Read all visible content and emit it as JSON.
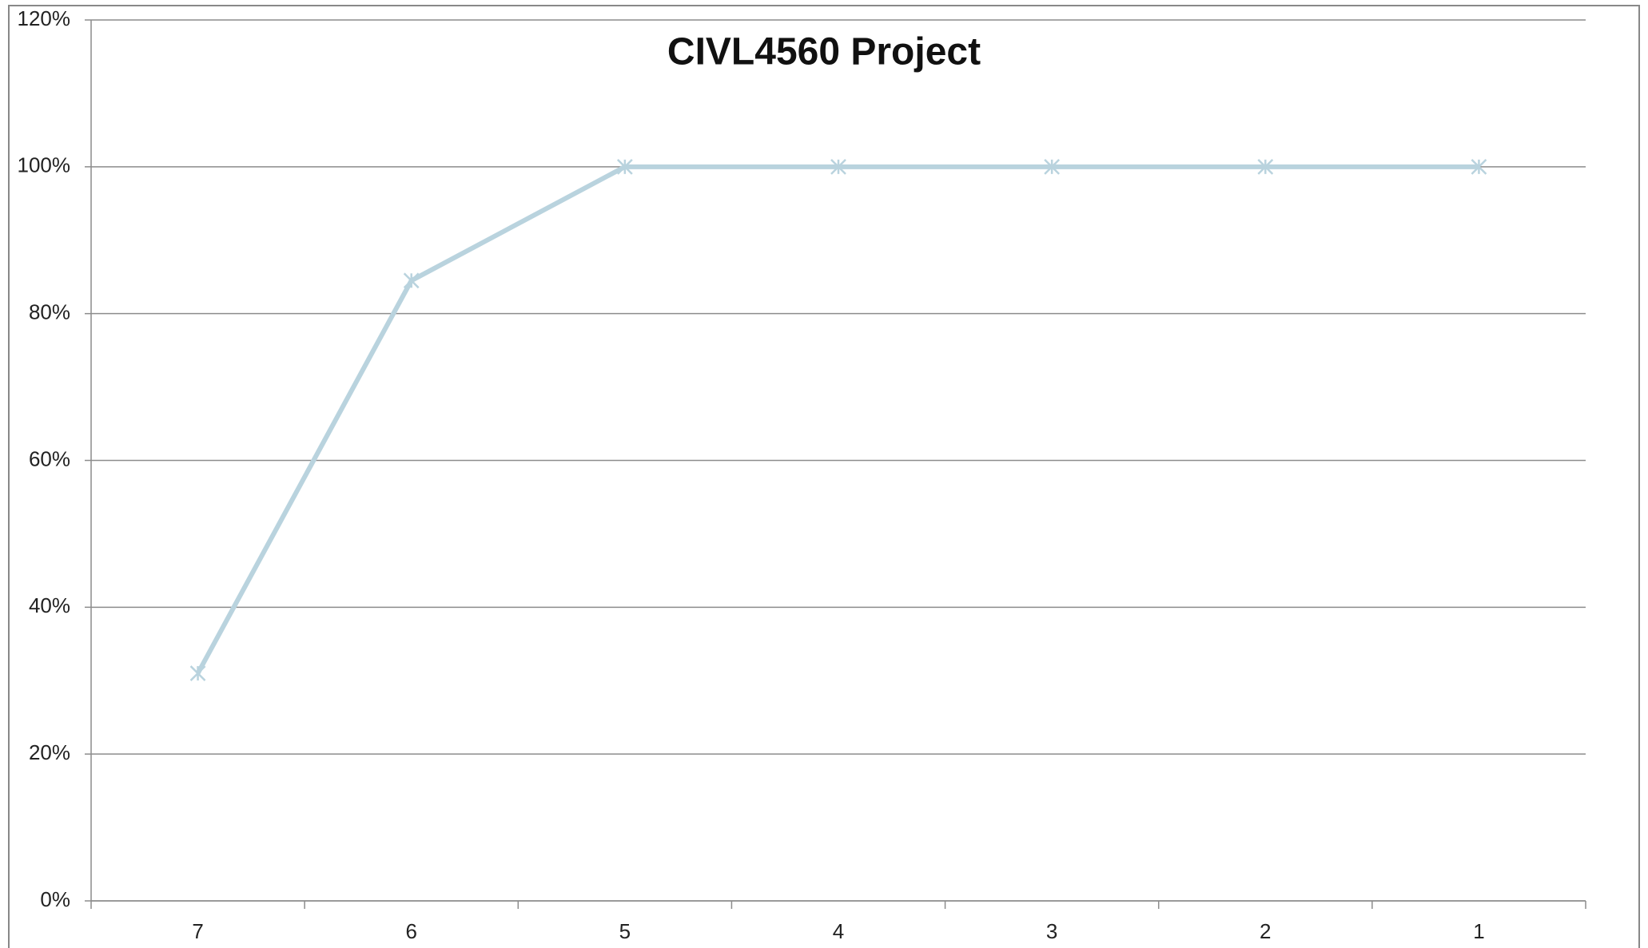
{
  "chart_data": {
    "type": "line",
    "title": "CIVL4560 Project",
    "categories": [
      "7",
      "6",
      "5",
      "4",
      "3",
      "2",
      "1"
    ],
    "values": [
      31,
      84.5,
      100,
      100,
      100,
      100,
      100
    ],
    "color": "#b9d3de",
    "ylim": [
      0,
      120
    ],
    "yticks": [
      {
        "value": 0,
        "label": "0%"
      },
      {
        "value": 20,
        "label": "20%"
      },
      {
        "value": 40,
        "label": "40%"
      },
      {
        "value": 60,
        "label": "60%"
      },
      {
        "value": 80,
        "label": "80%"
      },
      {
        "value": 100,
        "label": "100%"
      },
      {
        "value": 120,
        "label": "120%"
      }
    ],
    "grid": true
  }
}
